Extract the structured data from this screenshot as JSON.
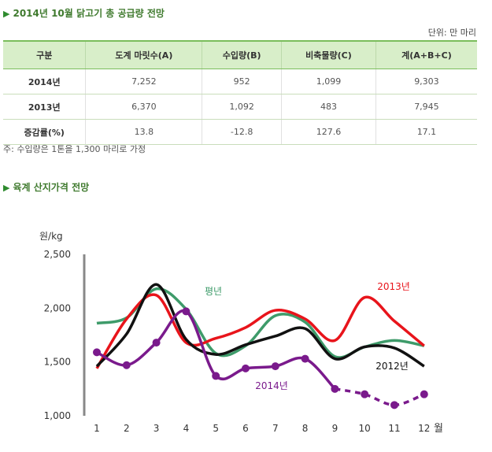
{
  "section1": {
    "title": "2014년 10월 닭고기 총 공급량 전망"
  },
  "unit_label": "단위: 만 마리",
  "table": {
    "headers": [
      "구분",
      "도계 마릿수(A)",
      "수입량(B)",
      "비축물량(C)",
      "계(A+B+C)"
    ],
    "rows": [
      [
        "2014년",
        "7,252",
        "952",
        "1,099",
        "9,303"
      ],
      [
        "2013년",
        "6,370",
        "1,092",
        "483",
        "7,945"
      ],
      [
        "증감률(%)",
        "13.8",
        "-12.8",
        "127.6",
        "17.1"
      ]
    ]
  },
  "note": "주: 수입량은 1톤을 1,300 마리로 가정",
  "section2": {
    "title": "육계 산지가격 전망"
  },
  "chart_data": {
    "type": "line",
    "ylabel": "원/kg",
    "xlabel": "월",
    "x": [
      1,
      2,
      3,
      4,
      5,
      6,
      7,
      8,
      9,
      10,
      11,
      12
    ],
    "ylim": [
      1000,
      2500
    ],
    "yticks": [
      1000,
      1500,
      2000,
      2500
    ],
    "ytick_labels": [
      "1,000",
      "1,500",
      "2,000",
      "2,500"
    ],
    "grid": false,
    "series": [
      {
        "name": "평년",
        "color": "#3e9b6a",
        "style": "solid",
        "markers": false,
        "values": [
          1860,
          1910,
          2180,
          1990,
          1580,
          1650,
          1930,
          1870,
          1550,
          1640,
          1700,
          1650
        ]
      },
      {
        "name": "2013년",
        "color": "#e8141b",
        "style": "solid",
        "markers": false,
        "values": [
          1440,
          1900,
          2120,
          1680,
          1720,
          1820,
          1980,
          1900,
          1700,
          2100,
          1880,
          1650
        ]
      },
      {
        "name": "2012년",
        "color": "#111111",
        "style": "solid",
        "markers": false,
        "values": [
          1460,
          1760,
          2220,
          1710,
          1570,
          1660,
          1740,
          1810,
          1530,
          1640,
          1630,
          1460
        ]
      },
      {
        "name": "2014년",
        "color": "#7a1a8c",
        "style": "solid-then-dashed",
        "dash_from_index": 8,
        "markers": true,
        "values": [
          1590,
          1470,
          1680,
          1970,
          1370,
          1440,
          1460,
          1530,
          1250,
          1200,
          1100,
          1200
        ]
      }
    ],
    "labels": [
      {
        "series": "평년",
        "text": "평년",
        "color": "#3e9b6a"
      },
      {
        "series": "2013년",
        "text": "2013년",
        "color": "#e8141b"
      },
      {
        "series": "2012년",
        "text": "2012년",
        "color": "#111111"
      },
      {
        "series": "2014년",
        "text": "2014년",
        "color": "#7a1a8c"
      }
    ]
  }
}
